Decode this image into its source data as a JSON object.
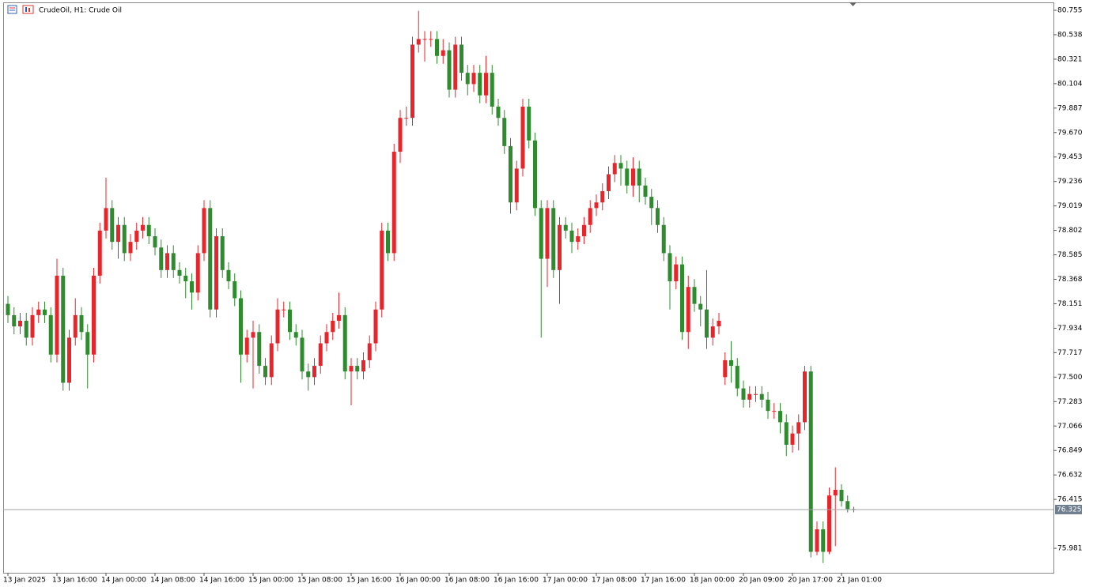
{
  "chart_data": {
    "type": "candlestick",
    "title": "CrudeOil, H1:  Crude Oil",
    "up_color": "#e8252b",
    "down_color": "#2e8b2e",
    "last_price": 76.325,
    "ylim": [
      75.764,
      80.825
    ],
    "yticks": [
      80.755,
      80.538,
      80.321,
      80.104,
      79.887,
      {
        "value": 79.67,
        "label": "79.670"
      },
      79.453,
      79.236,
      79.019,
      78.802,
      78.585,
      78.368,
      78.151,
      77.934,
      77.717,
      {
        "value": 77.5,
        "label": "77.500"
      },
      77.283,
      77.066,
      76.849,
      76.632,
      76.415,
      75.981
    ],
    "categories": [
      "13 Jan 2025",
      null,
      null,
      null,
      null,
      null,
      null,
      null,
      "13 Jan 16:00",
      null,
      null,
      null,
      null,
      null,
      null,
      null,
      "14 Jan 00:00",
      null,
      null,
      null,
      null,
      null,
      null,
      null,
      "14 Jan 08:00",
      null,
      null,
      null,
      null,
      null,
      null,
      null,
      "14 Jan 16:00",
      null,
      null,
      null,
      null,
      null,
      null,
      null,
      "15 Jan 00:00",
      null,
      null,
      null,
      null,
      null,
      null,
      null,
      "15 Jan 08:00",
      null,
      null,
      null,
      null,
      null,
      null,
      null,
      "15 Jan 16:00",
      null,
      null,
      null,
      null,
      null,
      null,
      null,
      "16 Jan 00:00",
      null,
      null,
      null,
      null,
      null,
      null,
      null,
      "16 Jan 08:00",
      null,
      null,
      null,
      null,
      null,
      null,
      null,
      "16 Jan 16:00",
      null,
      null,
      null,
      null,
      null,
      null,
      null,
      "17 Jan 00:00",
      null,
      null,
      null,
      null,
      null,
      null,
      null,
      "17 Jan 08:00",
      null,
      null,
      null,
      null,
      null,
      null,
      null,
      "17 Jan 16:00",
      null,
      null,
      null,
      null,
      null,
      null,
      null,
      "18 Jan 00:00",
      null,
      null,
      null,
      null,
      null,
      null,
      null,
      "20 Jan 09:00",
      null,
      null,
      null,
      null,
      null,
      null,
      null,
      "20 Jan 17:00",
      null,
      null,
      null,
      null,
      null,
      null,
      null,
      "21 Jan 01:00",
      null,
      null
    ],
    "values": [
      [
        78.15,
        78.22,
        77.98,
        78.05
      ],
      [
        78.05,
        78.12,
        77.88,
        77.95
      ],
      [
        77.95,
        78.07,
        77.88,
        78.0
      ],
      [
        78.0,
        78.07,
        77.78,
        77.85
      ],
      [
        77.85,
        78.12,
        77.78,
        78.05
      ],
      [
        78.05,
        78.17,
        77.98,
        78.1
      ],
      [
        78.1,
        78.17,
        77.98,
        78.05
      ],
      [
        78.05,
        78.12,
        77.63,
        77.7
      ],
      [
        77.7,
        78.55,
        77.63,
        78.4
      ],
      [
        78.4,
        78.47,
        77.38,
        77.45
      ],
      [
        77.45,
        77.92,
        77.38,
        77.85
      ],
      [
        77.85,
        78.2,
        77.78,
        78.05
      ],
      [
        78.05,
        78.12,
        77.83,
        77.9
      ],
      [
        77.9,
        77.97,
        77.4,
        77.7
      ],
      [
        77.7,
        78.47,
        77.63,
        78.4
      ],
      [
        78.4,
        78.87,
        78.33,
        78.8
      ],
      [
        78.8,
        79.27,
        78.73,
        79.0
      ],
      [
        79.0,
        79.07,
        78.63,
        78.7
      ],
      [
        78.7,
        78.92,
        78.55,
        78.85
      ],
      [
        78.85,
        78.92,
        78.53,
        78.6
      ],
      [
        78.6,
        78.77,
        78.53,
        78.7
      ],
      [
        78.7,
        78.87,
        78.63,
        78.8
      ],
      [
        78.8,
        78.92,
        78.73,
        78.85
      ],
      [
        78.85,
        78.92,
        78.68,
        78.75
      ],
      [
        78.75,
        78.82,
        78.58,
        78.65
      ],
      [
        78.65,
        78.72,
        78.38,
        78.45
      ],
      [
        78.45,
        78.67,
        78.38,
        78.6
      ],
      [
        78.6,
        78.67,
        78.38,
        78.45
      ],
      [
        78.45,
        78.52,
        78.33,
        78.4
      ],
      [
        78.4,
        78.47,
        78.2,
        78.35
      ],
      [
        78.35,
        78.42,
        78.1,
        78.25
      ],
      [
        78.25,
        78.67,
        78.18,
        78.6
      ],
      [
        78.6,
        79.07,
        78.53,
        79.0
      ],
      [
        79.0,
        79.07,
        78.03,
        78.1
      ],
      [
        78.1,
        78.82,
        78.03,
        78.75
      ],
      [
        78.75,
        78.82,
        78.38,
        78.45
      ],
      [
        78.45,
        78.52,
        78.28,
        78.35
      ],
      [
        78.35,
        78.42,
        78.13,
        78.2
      ],
      [
        78.2,
        78.27,
        77.45,
        77.7
      ],
      [
        77.7,
        77.92,
        77.63,
        77.85
      ],
      [
        77.85,
        78.0,
        77.4,
        77.9
      ],
      [
        77.9,
        77.97,
        77.53,
        77.6
      ],
      [
        77.6,
        77.67,
        77.43,
        77.5
      ],
      [
        77.5,
        77.87,
        77.43,
        77.8
      ],
      [
        77.8,
        78.2,
        77.73,
        78.1
      ],
      [
        78.1,
        78.17,
        78.03,
        78.1
      ],
      [
        78.1,
        78.17,
        77.83,
        77.9
      ],
      [
        77.9,
        77.97,
        77.78,
        77.85
      ],
      [
        77.85,
        77.92,
        77.48,
        77.55
      ],
      [
        77.55,
        77.62,
        77.38,
        77.5
      ],
      [
        77.5,
        77.67,
        77.43,
        77.6
      ],
      [
        77.6,
        77.87,
        77.53,
        77.8
      ],
      [
        77.8,
        77.97,
        77.73,
        77.9
      ],
      [
        77.9,
        78.07,
        77.83,
        78.0
      ],
      [
        78.0,
        78.25,
        77.93,
        78.05
      ],
      [
        78.05,
        78.12,
        77.48,
        77.55
      ],
      [
        77.55,
        77.67,
        77.25,
        77.6
      ],
      [
        77.6,
        77.67,
        77.48,
        77.55
      ],
      [
        77.55,
        77.72,
        77.48,
        77.65
      ],
      [
        77.65,
        77.87,
        77.58,
        77.8
      ],
      [
        77.8,
        78.17,
        77.73,
        78.1
      ],
      [
        78.1,
        78.87,
        78.03,
        78.8
      ],
      [
        78.8,
        78.87,
        78.53,
        78.6
      ],
      [
        78.6,
        79.57,
        78.53,
        79.5
      ],
      [
        79.5,
        79.87,
        79.4,
        79.8
      ],
      [
        79.8,
        79.9,
        79.73,
        79.8
      ],
      [
        79.8,
        80.52,
        79.73,
        80.45
      ],
      [
        80.45,
        80.75,
        80.38,
        80.5
      ],
      [
        80.5,
        80.57,
        80.3,
        80.5
      ],
      [
        80.5,
        80.57,
        80.43,
        80.5
      ],
      [
        80.5,
        80.57,
        80.28,
        80.35
      ],
      [
        80.35,
        80.5,
        80.28,
        80.4
      ],
      [
        80.4,
        80.47,
        79.98,
        80.05
      ],
      [
        80.05,
        80.52,
        79.98,
        80.45
      ],
      [
        80.45,
        80.52,
        80.13,
        80.2
      ],
      [
        80.2,
        80.27,
        80.0,
        80.1
      ],
      [
        80.1,
        80.27,
        80.03,
        80.2
      ],
      [
        80.2,
        80.27,
        79.93,
        80.0
      ],
      [
        80.0,
        80.35,
        79.93,
        80.2
      ],
      [
        80.2,
        80.27,
        79.83,
        79.9
      ],
      [
        79.9,
        79.97,
        79.73,
        79.8
      ],
      [
        79.8,
        79.87,
        79.48,
        79.55
      ],
      [
        79.55,
        79.62,
        78.95,
        79.05
      ],
      [
        79.05,
        79.42,
        78.98,
        79.35
      ],
      [
        79.35,
        79.97,
        79.28,
        79.9
      ],
      [
        79.9,
        79.97,
        79.53,
        79.6
      ],
      [
        79.6,
        79.67,
        78.93,
        79.0
      ],
      [
        79.0,
        79.07,
        77.85,
        78.55
      ],
      [
        78.55,
        79.07,
        78.3,
        79.0
      ],
      [
        79.0,
        79.07,
        78.38,
        78.45
      ],
      [
        78.45,
        78.92,
        78.15,
        78.85
      ],
      [
        78.85,
        78.92,
        78.73,
        78.8
      ],
      [
        78.8,
        78.87,
        78.6,
        78.7
      ],
      [
        78.7,
        78.82,
        78.63,
        78.75
      ],
      [
        78.75,
        78.92,
        78.68,
        78.85
      ],
      [
        78.85,
        79.07,
        78.78,
        79.0
      ],
      [
        79.0,
        79.12,
        78.93,
        79.05
      ],
      [
        79.05,
        79.22,
        78.98,
        79.15
      ],
      [
        79.15,
        79.37,
        79.08,
        79.3
      ],
      [
        79.3,
        79.47,
        79.23,
        79.4
      ],
      [
        79.4,
        79.47,
        79.2,
        79.35
      ],
      [
        79.35,
        79.42,
        79.13,
        79.2
      ],
      [
        79.2,
        79.45,
        79.1,
        79.35
      ],
      [
        79.35,
        79.42,
        79.05,
        79.2
      ],
      [
        79.2,
        79.27,
        79.03,
        79.1
      ],
      [
        79.1,
        79.17,
        78.85,
        79.0
      ],
      [
        79.0,
        79.07,
        78.78,
        78.85
      ],
      [
        78.85,
        78.92,
        78.53,
        78.6
      ],
      [
        78.6,
        78.67,
        78.1,
        78.35
      ],
      [
        78.35,
        78.57,
        78.28,
        78.5
      ],
      [
        78.5,
        78.57,
        77.83,
        77.9
      ],
      [
        77.9,
        78.4,
        77.75,
        78.3
      ],
      [
        78.3,
        78.37,
        78.08,
        78.15
      ],
      [
        78.15,
        78.22,
        77.95,
        78.1
      ],
      [
        78.1,
        78.45,
        77.75,
        77.85
      ],
      [
        77.85,
        78.02,
        77.78,
        77.95
      ],
      [
        77.95,
        78.07,
        77.88,
        78.0
      ],
      [
        77.5,
        77.72,
        77.43,
        77.65
      ],
      [
        77.65,
        77.82,
        77.45,
        77.6
      ],
      [
        77.6,
        77.67,
        77.33,
        77.4
      ],
      [
        77.4,
        77.47,
        77.23,
        77.3
      ],
      [
        77.3,
        77.42,
        77.23,
        77.35
      ],
      [
        77.35,
        77.42,
        77.28,
        77.35
      ],
      [
        77.35,
        77.42,
        77.23,
        77.3
      ],
      [
        77.3,
        77.37,
        77.13,
        77.2
      ],
      [
        77.2,
        77.27,
        77.13,
        77.2
      ],
      [
        77.2,
        77.27,
        77.0,
        77.1
      ],
      [
        77.1,
        77.17,
        76.8,
        76.9
      ],
      [
        76.9,
        77.07,
        76.83,
        77.0
      ],
      [
        77.0,
        77.17,
        76.85,
        77.1
      ],
      [
        77.1,
        77.6,
        77.03,
        77.55
      ],
      [
        77.55,
        77.6,
        75.9,
        75.95
      ],
      [
        75.95,
        76.22,
        75.92,
        76.15
      ],
      [
        76.15,
        76.22,
        75.85,
        75.95
      ],
      [
        75.95,
        76.52,
        75.93,
        76.45
      ],
      [
        76.45,
        76.7,
        76.0,
        76.5
      ],
      [
        76.5,
        76.55,
        76.35,
        76.4
      ],
      [
        76.4,
        76.45,
        76.3,
        76.33
      ],
      [
        76.33,
        76.35,
        76.3,
        76.325
      ]
    ]
  }
}
